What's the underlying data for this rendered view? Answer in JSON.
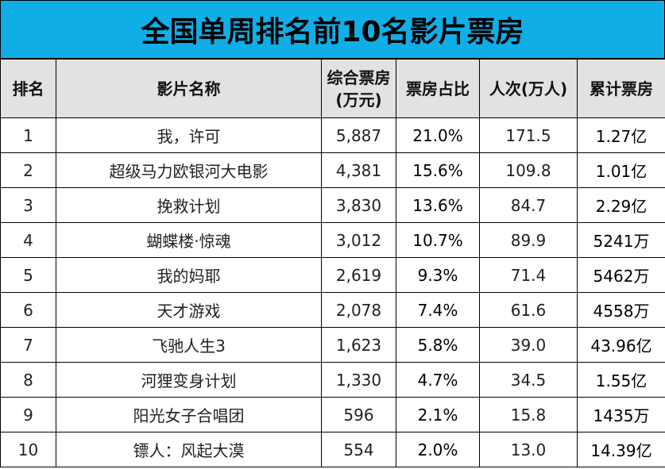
{
  "title": "全国单周排名前10名影片票房",
  "headers": [
    "排名",
    "影片名称",
    "综合票房\n(万元)",
    "票房占比",
    "人次(万人)",
    "累计票房"
  ],
  "rows": [
    [
      "1",
      "我，许可",
      "5,887",
      "21.0%",
      "171.5",
      "1.27亿"
    ],
    [
      "2",
      "超级马力欧银河大电影",
      "4,381",
      "15.6%",
      "109.8",
      "1.01亿"
    ],
    [
      "3",
      "挽救计划",
      "3,830",
      "13.6%",
      "84.7",
      "2.29亿"
    ],
    [
      "4",
      "蝴蝶楼·惊魂",
      "3,012",
      "10.7%",
      "89.9",
      "5241万"
    ],
    [
      "5",
      "我的妈耶",
      "2,619",
      "9.3%",
      "71.4",
      "5462万"
    ],
    [
      "6",
      "天才游戏",
      "2,078",
      "7.4%",
      "61.6",
      "4558万"
    ],
    [
      "7",
      "飞驰人生3",
      "1,623",
      "5.8%",
      "39.0",
      "43.96亿"
    ],
    [
      "8",
      "河狸变身计划",
      "1,330",
      "4.7%",
      "34.5",
      "1.55亿"
    ],
    [
      "9",
      "阳光女子合唱团",
      "596",
      "2.1%",
      "15.8",
      "1435万"
    ],
    [
      "10",
      "镖人：风起大漠",
      "554",
      "2.0%",
      "13.0",
      "14.39亿"
    ]
  ],
  "colors": {
    "title_bg": "#10aee7",
    "header_bg": "#e2e2e2",
    "border": "#000000"
  }
}
